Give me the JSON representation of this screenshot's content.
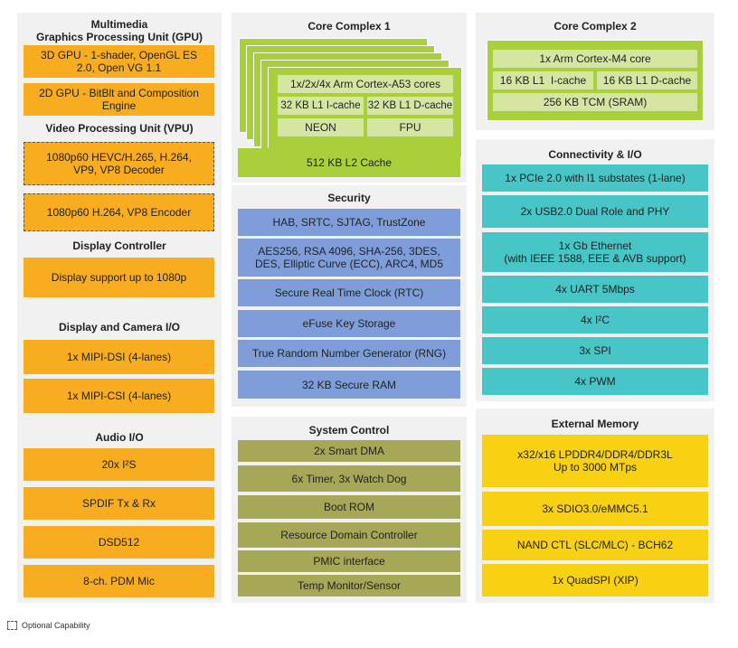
{
  "left": {
    "gpu_title": "Multimedia\nGraphics Processing Unit (GPU)",
    "gpu_items": [
      "3D GPU - 1-shader, OpenGL ES 2.0, Open VG 1.1",
      "2D GPU - BitBlt and Composition Engine"
    ],
    "vpu_title": "Video Processing Unit (VPU)",
    "vpu_items": [
      "1080p60 HEVC/H.265, H.264, VP9, VP8 Decoder",
      "1080p60 H.264, VP8 Encoder"
    ],
    "display_title": "Display Controller",
    "display_items": [
      "Display support up to 1080p"
    ],
    "dcio_title": "Display and Camera I/O",
    "dcio_items": [
      "1x MIPI-DSI (4-lanes)",
      "1x MIPI-CSI (4-lanes)"
    ],
    "audio_title": "Audio I/O",
    "audio_items": [
      "20x I²S",
      "SPDIF Tx & Rx",
      "DSD512",
      "8-ch. PDM Mic"
    ]
  },
  "core1": {
    "title": "Core Complex 1",
    "cores": "1x/2x/4x Arm Cortex-A53 cores",
    "icache": "32 KB L1 I-cache",
    "dcache": "32 KB L1 D-cache",
    "neon": "NEON",
    "fpu": "FPU",
    "l2": "512 KB L2 Cache"
  },
  "security": {
    "title": "Security",
    "items": [
      "HAB, SRTC, SJTAG, TrustZone",
      "AES256, RSA 4096, SHA-256, 3DES, DES, Elliptic Curve (ECC), ARC4, MD5",
      "Secure Real Time Clock (RTC)",
      "eFuse Key Storage",
      "True Random Number Generator (RNG)",
      "32 KB Secure RAM"
    ]
  },
  "system": {
    "title": "System Control",
    "items": [
      "2x Smart DMA",
      "6x Timer, 3x Watch Dog",
      "Boot ROM",
      "Resource Domain Controller",
      "PMIC interface",
      "Temp Monitor/Sensor"
    ]
  },
  "core2": {
    "title": "Core Complex 2",
    "core": "1x Arm Cortex-M4 core",
    "icache": "16 KB L1  I-cache",
    "dcache": "16 KB L1 D-cache",
    "tcm": "256 KB TCM (SRAM)"
  },
  "connectivity": {
    "title": "Connectivity & I/O",
    "items": [
      "1x PCIe 2.0 with l1 substates (1-lane)",
      "2x USB2.0 Dual Role and PHY",
      "1x Gb Ethernet\n(with IEEE 1588, EEE & AVB support)",
      "4x UART 5Mbps",
      "4x I²C",
      "3x SPI",
      "4x PWM"
    ]
  },
  "memory": {
    "title": "External Memory",
    "items": [
      "x32/x16 LPDDR4/DDR4/DDR3L\nUp to 3000 MTps",
      "3x SDIO3.0/eMMC5.1",
      "NAND CTL (SLC/MLC) - BCH62",
      "1x QuadSPI (XIP)"
    ]
  },
  "legend": {
    "label": "Optional Capability"
  },
  "colors": {
    "orange": "#f8ac1f",
    "blue": "#7f9ed9",
    "teal": "#48c5c6",
    "olive": "#a6a857",
    "yellow": "#f8d113",
    "green": "#a9cf3b"
  }
}
